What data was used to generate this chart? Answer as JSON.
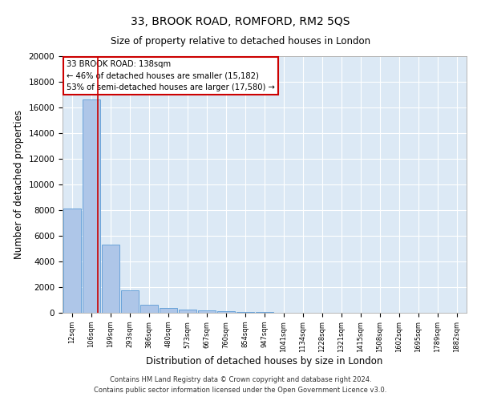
{
  "title": "33, BROOK ROAD, ROMFORD, RM2 5QS",
  "subtitle": "Size of property relative to detached houses in London",
  "xlabel": "Distribution of detached houses by size in London",
  "ylabel": "Number of detached properties",
  "bar_color": "#aec6e8",
  "bar_edge_color": "#5b9bd5",
  "background_color": "#dce9f5",
  "grid_color": "#ffffff",
  "categories": [
    "12sqm",
    "106sqm",
    "199sqm",
    "293sqm",
    "386sqm",
    "480sqm",
    "573sqm",
    "667sqm",
    "760sqm",
    "854sqm",
    "947sqm",
    "1041sqm",
    "1134sqm",
    "1228sqm",
    "1321sqm",
    "1415sqm",
    "1508sqm",
    "1602sqm",
    "1695sqm",
    "1789sqm",
    "1882sqm"
  ],
  "values": [
    8100,
    16600,
    5300,
    1750,
    650,
    350,
    280,
    200,
    150,
    80,
    50,
    30,
    20,
    15,
    10,
    8,
    6,
    5,
    4,
    3,
    2
  ],
  "ylim": [
    0,
    20000
  ],
  "yticks": [
    0,
    2000,
    4000,
    6000,
    8000,
    10000,
    12000,
    14000,
    16000,
    18000,
    20000
  ],
  "red_line_x": 1.32,
  "annotation_title": "33 BROOK ROAD: 138sqm",
  "annotation_line1": "← 46% of detached houses are smaller (15,182)",
  "annotation_line2": "53% of semi-detached houses are larger (17,580) →",
  "annotation_box_color": "#ffffff",
  "annotation_border_color": "#cc0000",
  "footer_line1": "Contains HM Land Registry data © Crown copyright and database right 2024.",
  "footer_line2": "Contains public sector information licensed under the Open Government Licence v3.0."
}
